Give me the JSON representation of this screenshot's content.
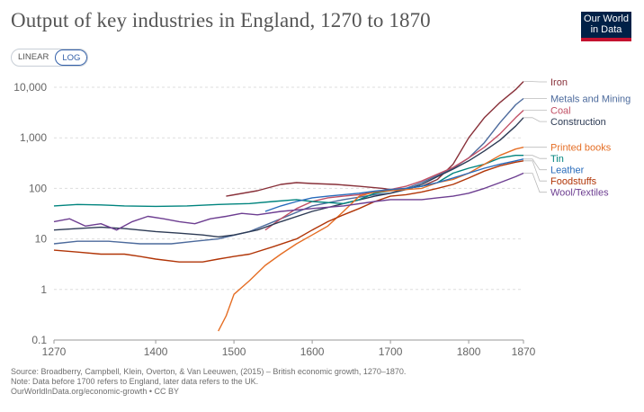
{
  "header": {
    "title": "Output of key industries in England, 1270 to 1870",
    "logo_line1": "Our World",
    "logo_line2": "in Data"
  },
  "scale_toggle": {
    "linear_label": "LINEAR",
    "log_label": "LOG",
    "selected": "LOG"
  },
  "footer": {
    "source": "Source: Broadberry, Campbell, Klein, Overton, & Van Leeuwen, (2015) – British economic growth, 1270–1870.",
    "note": "Note: Data before 1700 refers to England, later data refers to the UK.",
    "url": "OurWorldInData.org/economic-growth • CC BY"
  },
  "chart_data": {
    "type": "line",
    "yscale": "log",
    "xlim": [
      1270,
      1870
    ],
    "ylim": [
      0.1,
      10000
    ],
    "x_ticks": [
      1270,
      1400,
      1500,
      1600,
      1700,
      1800,
      1870
    ],
    "y_ticks": [
      0.1,
      1,
      10,
      100,
      1000,
      10000
    ],
    "y_tick_labels": [
      "0.1",
      "1",
      "10",
      "100",
      "1,000",
      "10,000"
    ],
    "grid": "horizontal dashed",
    "legend": "right, end-of-line labels",
    "series": [
      {
        "name": "Iron",
        "color": "#883039",
        "points": [
          [
            1490,
            70
          ],
          [
            1530,
            90
          ],
          [
            1560,
            120
          ],
          [
            1580,
            130
          ],
          [
            1600,
            125
          ],
          [
            1630,
            120
          ],
          [
            1660,
            110
          ],
          [
            1690,
            100
          ],
          [
            1700,
            95
          ],
          [
            1720,
            100
          ],
          [
            1740,
            110
          ],
          [
            1760,
            150
          ],
          [
            1780,
            300
          ],
          [
            1800,
            1000
          ],
          [
            1820,
            2500
          ],
          [
            1840,
            5000
          ],
          [
            1860,
            9000
          ],
          [
            1870,
            13000
          ]
        ]
      },
      {
        "name": "Metals and Mining",
        "color": "#4c6a9c",
        "points": [
          [
            1270,
            8
          ],
          [
            1300,
            9
          ],
          [
            1340,
            9
          ],
          [
            1380,
            8
          ],
          [
            1420,
            8
          ],
          [
            1450,
            9
          ],
          [
            1480,
            10
          ],
          [
            1520,
            14
          ],
          [
            1560,
            25
          ],
          [
            1600,
            45
          ],
          [
            1640,
            60
          ],
          [
            1680,
            75
          ],
          [
            1700,
            80
          ],
          [
            1720,
            100
          ],
          [
            1740,
            130
          ],
          [
            1760,
            180
          ],
          [
            1780,
            250
          ],
          [
            1800,
            400
          ],
          [
            1820,
            800
          ],
          [
            1840,
            2000
          ],
          [
            1860,
            4500
          ],
          [
            1870,
            6000
          ]
        ]
      },
      {
        "name": "Coal",
        "color": "#c15065",
        "points": [
          [
            1540,
            15
          ],
          [
            1560,
            25
          ],
          [
            1580,
            40
          ],
          [
            1600,
            55
          ],
          [
            1620,
            65
          ],
          [
            1640,
            70
          ],
          [
            1660,
            75
          ],
          [
            1680,
            85
          ],
          [
            1700,
            95
          ],
          [
            1720,
            110
          ],
          [
            1740,
            140
          ],
          [
            1760,
            190
          ],
          [
            1780,
            260
          ],
          [
            1800,
            400
          ],
          [
            1820,
            650
          ],
          [
            1840,
            1200
          ],
          [
            1860,
            2500
          ],
          [
            1870,
            3500
          ]
        ]
      },
      {
        "name": "Construction",
        "color": "#2d3b55",
        "points": [
          [
            1270,
            15
          ],
          [
            1300,
            16
          ],
          [
            1330,
            17
          ],
          [
            1360,
            16
          ],
          [
            1400,
            14
          ],
          [
            1430,
            13
          ],
          [
            1460,
            12
          ],
          [
            1480,
            11
          ],
          [
            1500,
            12
          ],
          [
            1530,
            15
          ],
          [
            1560,
            22
          ],
          [
            1600,
            35
          ],
          [
            1640,
            50
          ],
          [
            1680,
            70
          ],
          [
            1700,
            80
          ],
          [
            1720,
            95
          ],
          [
            1740,
            120
          ],
          [
            1760,
            170
          ],
          [
            1780,
            240
          ],
          [
            1800,
            350
          ],
          [
            1820,
            550
          ],
          [
            1840,
            900
          ],
          [
            1860,
            1700
          ],
          [
            1870,
            2500
          ]
        ]
      },
      {
        "name": "Tin",
        "color": "#00847e",
        "points": [
          [
            1270,
            45
          ],
          [
            1300,
            48
          ],
          [
            1330,
            47
          ],
          [
            1360,
            45
          ],
          [
            1400,
            44
          ],
          [
            1440,
            45
          ],
          [
            1480,
            48
          ],
          [
            1520,
            50
          ],
          [
            1550,
            55
          ],
          [
            1580,
            60
          ],
          [
            1600,
            55
          ],
          [
            1640,
            50
          ],
          [
            1660,
            60
          ],
          [
            1680,
            80
          ],
          [
            1700,
            90
          ],
          [
            1720,
            100
          ],
          [
            1740,
            110
          ],
          [
            1760,
            130
          ],
          [
            1780,
            200
          ],
          [
            1800,
            250
          ],
          [
            1820,
            300
          ],
          [
            1840,
            400
          ],
          [
            1860,
            450
          ],
          [
            1870,
            450
          ]
        ]
      },
      {
        "name": "Printed books",
        "color": "#e56e25",
        "points": [
          [
            1480,
            0.15
          ],
          [
            1490,
            0.3
          ],
          [
            1500,
            0.8
          ],
          [
            1520,
            1.5
          ],
          [
            1540,
            3
          ],
          [
            1560,
            5
          ],
          [
            1580,
            8
          ],
          [
            1600,
            12
          ],
          [
            1620,
            18
          ],
          [
            1640,
            35
          ],
          [
            1660,
            70
          ],
          [
            1680,
            85
          ],
          [
            1700,
            90
          ],
          [
            1720,
            95
          ],
          [
            1740,
            100
          ],
          [
            1760,
            130
          ],
          [
            1780,
            150
          ],
          [
            1800,
            200
          ],
          [
            1820,
            300
          ],
          [
            1840,
            450
          ],
          [
            1860,
            600
          ],
          [
            1870,
            650
          ]
        ]
      },
      {
        "name": "Leather",
        "color": "#286bbb",
        "points": [
          [
            1540,
            35
          ],
          [
            1560,
            45
          ],
          [
            1580,
            55
          ],
          [
            1600,
            65
          ],
          [
            1620,
            70
          ],
          [
            1640,
            75
          ],
          [
            1660,
            80
          ],
          [
            1680,
            88
          ],
          [
            1700,
            95
          ],
          [
            1720,
            100
          ],
          [
            1740,
            110
          ],
          [
            1760,
            130
          ],
          [
            1780,
            160
          ],
          [
            1800,
            200
          ],
          [
            1820,
            250
          ],
          [
            1840,
            300
          ],
          [
            1860,
            350
          ],
          [
            1870,
            380
          ]
        ]
      },
      {
        "name": "Foodstuffs",
        "color": "#b13507",
        "points": [
          [
            1270,
            6
          ],
          [
            1300,
            5.5
          ],
          [
            1330,
            5
          ],
          [
            1360,
            5
          ],
          [
            1380,
            4.5
          ],
          [
            1400,
            4
          ],
          [
            1430,
            3.5
          ],
          [
            1460,
            3.5
          ],
          [
            1480,
            4
          ],
          [
            1500,
            4.5
          ],
          [
            1520,
            5
          ],
          [
            1550,
            7
          ],
          [
            1580,
            10
          ],
          [
            1600,
            15
          ],
          [
            1620,
            22
          ],
          [
            1640,
            30
          ],
          [
            1660,
            40
          ],
          [
            1680,
            55
          ],
          [
            1700,
            70
          ],
          [
            1720,
            75
          ],
          [
            1740,
            85
          ],
          [
            1760,
            100
          ],
          [
            1780,
            120
          ],
          [
            1800,
            160
          ],
          [
            1820,
            220
          ],
          [
            1840,
            280
          ],
          [
            1860,
            330
          ],
          [
            1870,
            350
          ]
        ]
      },
      {
        "name": "Wool/Textiles",
        "color": "#6d3e91",
        "points": [
          [
            1270,
            22
          ],
          [
            1290,
            25
          ],
          [
            1310,
            18
          ],
          [
            1330,
            20
          ],
          [
            1350,
            15
          ],
          [
            1370,
            22
          ],
          [
            1390,
            28
          ],
          [
            1410,
            25
          ],
          [
            1430,
            22
          ],
          [
            1450,
            20
          ],
          [
            1470,
            25
          ],
          [
            1490,
            28
          ],
          [
            1510,
            32
          ],
          [
            1530,
            30
          ],
          [
            1560,
            35
          ],
          [
            1600,
            40
          ],
          [
            1640,
            45
          ],
          [
            1680,
            55
          ],
          [
            1700,
            60
          ],
          [
            1720,
            60
          ],
          [
            1740,
            60
          ],
          [
            1760,
            65
          ],
          [
            1780,
            70
          ],
          [
            1800,
            80
          ],
          [
            1820,
            100
          ],
          [
            1840,
            130
          ],
          [
            1860,
            170
          ],
          [
            1870,
            200
          ]
        ]
      }
    ]
  }
}
